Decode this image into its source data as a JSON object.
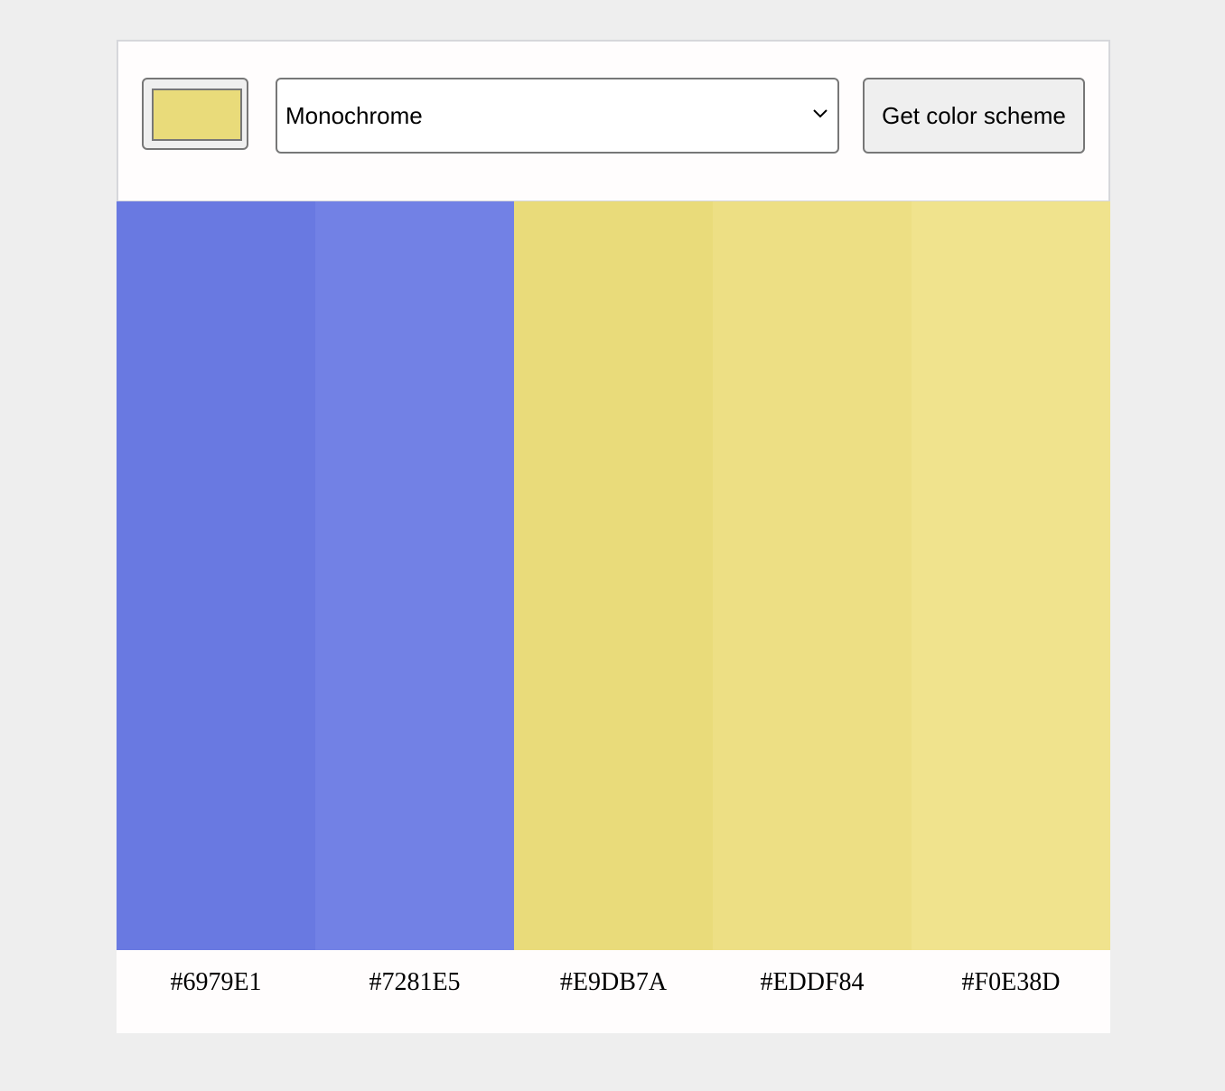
{
  "picker": {
    "value": "#E9DB7A"
  },
  "select": {
    "value": "Monochrome"
  },
  "button": {
    "label": "Get color scheme"
  },
  "scheme": [
    {
      "hex": "#6979E1"
    },
    {
      "hex": "#7281E5"
    },
    {
      "hex": "#E9DB7A"
    },
    {
      "hex": "#EDDF84"
    },
    {
      "hex": "#F0E38D"
    }
  ]
}
